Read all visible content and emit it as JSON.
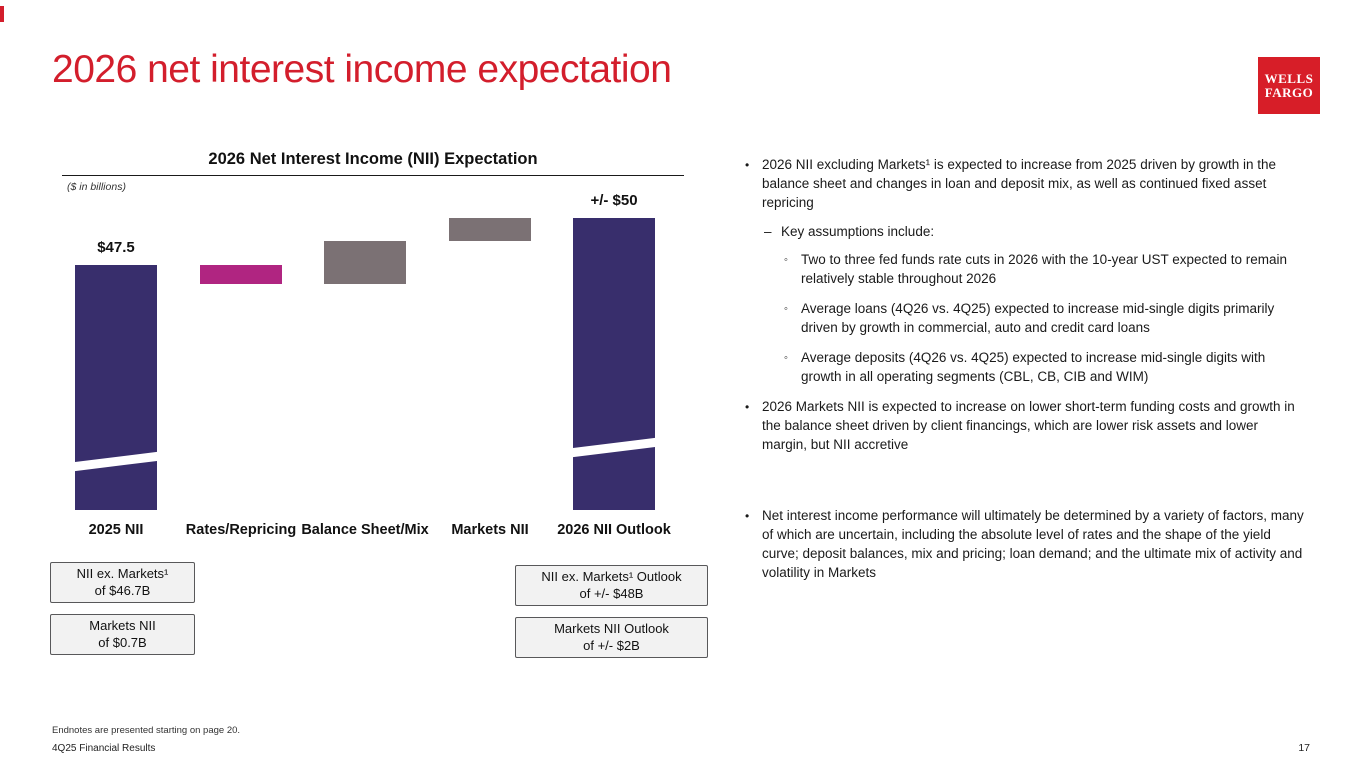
{
  "slide": {
    "title": "2026 net interest income expectation",
    "footer_endnote": "Endnotes are presented starting on page 20.",
    "footer_left": "4Q25 Financial Results",
    "page_number": "17"
  },
  "logo": {
    "line1": "WELLS",
    "line2": "FARGO"
  },
  "colors": {
    "brand_red": "#d31e2c",
    "navy_bar": "#382e6c",
    "magenta_bar": "#b02581",
    "gray_bar": "#7b7174",
    "callout_bg": "#f2f2f2"
  },
  "chart": {
    "title": "2026 Net Interest Income (NII) Expectation",
    "units_note": "($ in billions)"
  },
  "chart_data": {
    "type": "bar",
    "subtype": "waterfall",
    "title": "2026 Net Interest Income (NII) Expectation",
    "units": "$ in billions",
    "categories": [
      "2025 NII",
      "Rates/Repricing",
      "Balance Sheet/Mix",
      "Markets NII",
      "2026 NII Outlook"
    ],
    "bars": [
      {
        "category": "2025 NII",
        "role": "total",
        "value": 47.5,
        "label": "$47.5",
        "color": "#382e6c",
        "axis_break": true
      },
      {
        "category": "Rates/Repricing",
        "role": "decrease",
        "start": 47.5,
        "end": 46.5,
        "label": "",
        "color": "#b02581",
        "axis_break": false
      },
      {
        "category": "Balance Sheet/Mix",
        "role": "increase",
        "start": 46.5,
        "end": 48.8,
        "label": "",
        "color": "#7b7174",
        "axis_break": false
      },
      {
        "category": "Markets NII",
        "role": "increase",
        "start": 48.8,
        "end": 50.0,
        "label": "",
        "color": "#7b7174",
        "axis_break": false
      },
      {
        "category": "2026 NII Outlook",
        "role": "total",
        "value": 50.0,
        "label": "+/- $50",
        "color": "#382e6c",
        "axis_break": true
      }
    ],
    "note": "Intermediate bar deltas are not labeled on the chart; start/end values estimated from bar positions. Y-axis is broken (truncated) on the two total bars.",
    "legend": "none",
    "grid": "off"
  },
  "callouts": [
    {
      "line1": "NII ex. Markets¹",
      "line2": "of $46.7B"
    },
    {
      "line1": "Markets NII",
      "line2": "of $0.7B"
    },
    {
      "line1": "NII ex. Markets¹ Outlook",
      "line2": "of +/- $48B"
    },
    {
      "line1": "Markets NII Outlook",
      "line2": "of +/- $2B"
    }
  ],
  "bullets": [
    {
      "level": 1,
      "marker": "•",
      "text": "2026 NII excluding Markets¹ is expected to increase from 2025 driven by growth in the balance sheet and changes in loan and deposit mix, as well as continued fixed asset repricing"
    },
    {
      "level": 2,
      "marker": "–",
      "text": "Key assumptions include:"
    },
    {
      "level": 3,
      "marker": "◦",
      "text": "Two to three fed funds rate cuts in 2026 with the 10-year UST expected to remain relatively stable throughout 2026"
    },
    {
      "level": 3,
      "marker": "◦",
      "text": "Average loans (4Q26 vs. 4Q25) expected to increase mid-single digits primarily driven by growth in commercial, auto and credit card loans"
    },
    {
      "level": 3,
      "marker": "◦",
      "text": "Average deposits (4Q26 vs. 4Q25) expected to increase mid-single digits with growth in all operating segments (CBL, CB, CIB and WIM)"
    },
    {
      "level": 1,
      "marker": "•",
      "text": "2026 Markets NII is expected to increase on lower short-term funding costs and growth in the balance sheet driven by client financings, which are lower risk assets and lower margin, but NII accretive"
    },
    {
      "level": 1,
      "marker": "•",
      "gap_before": true,
      "text": "Net interest income performance will ultimately be determined by a variety of factors, many of which are uncertain, including the absolute level of rates and the shape of the yield curve; deposit balances, mix and pricing; loan demand; and the ultimate mix of activity and volatility in Markets"
    }
  ]
}
